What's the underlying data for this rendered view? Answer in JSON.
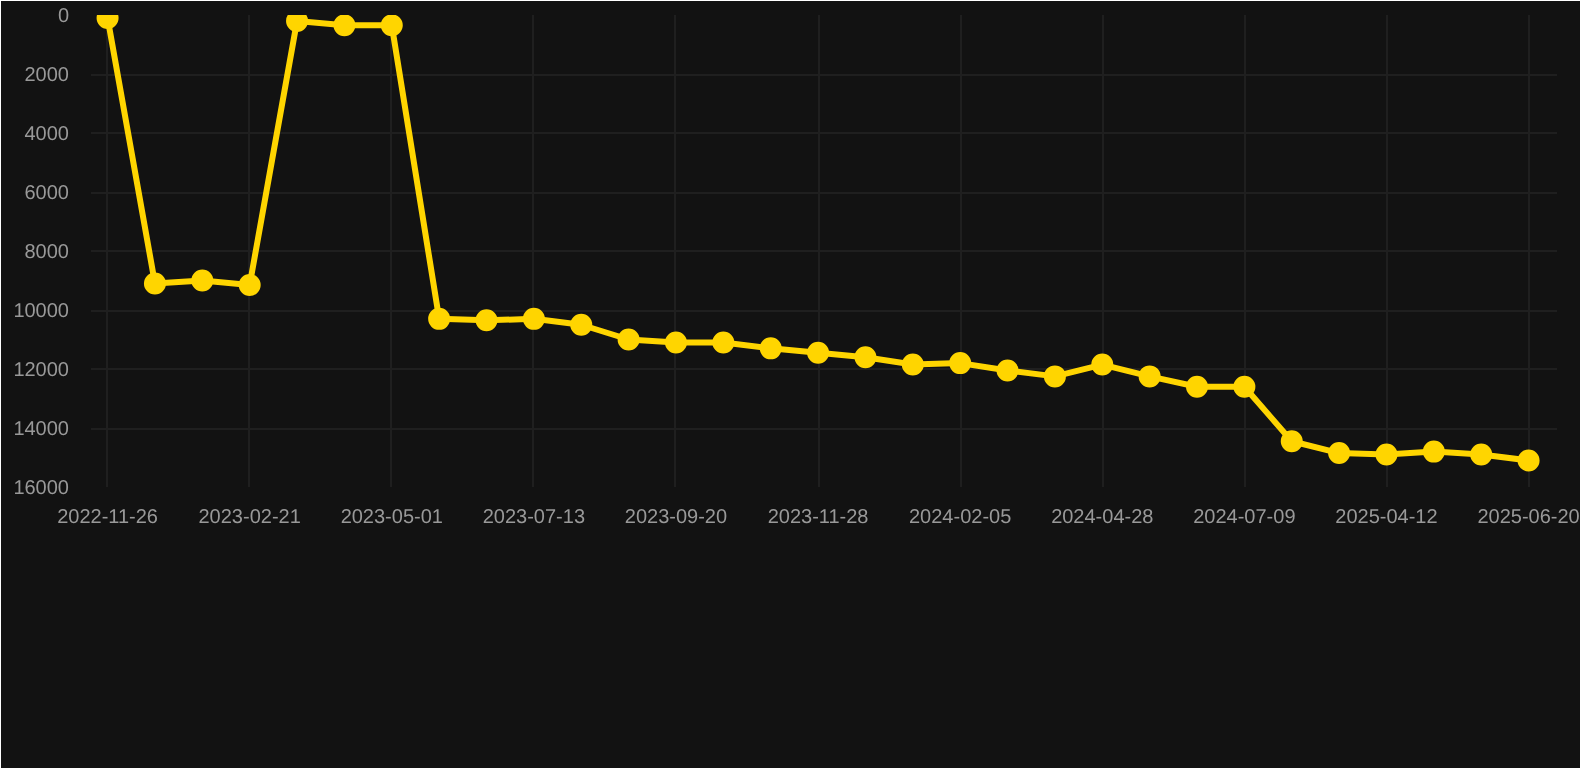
{
  "chart_data": {
    "type": "line",
    "categories": [
      "2022-11-26",
      null,
      null,
      "2023-02-21",
      null,
      null,
      "2023-05-01",
      null,
      null,
      "2023-07-13",
      null,
      null,
      "2023-09-20",
      null,
      null,
      "2023-11-28",
      null,
      null,
      "2024-02-05",
      null,
      null,
      "2024-04-28",
      null,
      null,
      "2024-07-09",
      null,
      null,
      "2025-04-12",
      null,
      null,
      "2025-06-20"
    ],
    "series": [
      {
        "color": "#ffd500",
        "values": [
          100,
          9100,
          9000,
          9150,
          200,
          350,
          350,
          10300,
          10350,
          10300,
          10500,
          11000,
          11100,
          11100,
          11300,
          11450,
          11600,
          11850,
          11800,
          12050,
          12250,
          11850,
          12250,
          12600,
          12600,
          14450,
          14850,
          14900,
          14800,
          14900,
          15100
        ]
      }
    ],
    "ylim": [
      16000,
      0
    ],
    "yticks": [
      0,
      2000,
      4000,
      6000,
      8000,
      10000,
      12000,
      14000,
      16000
    ],
    "grid": true,
    "marker": "circle",
    "line_style": "solid"
  }
}
